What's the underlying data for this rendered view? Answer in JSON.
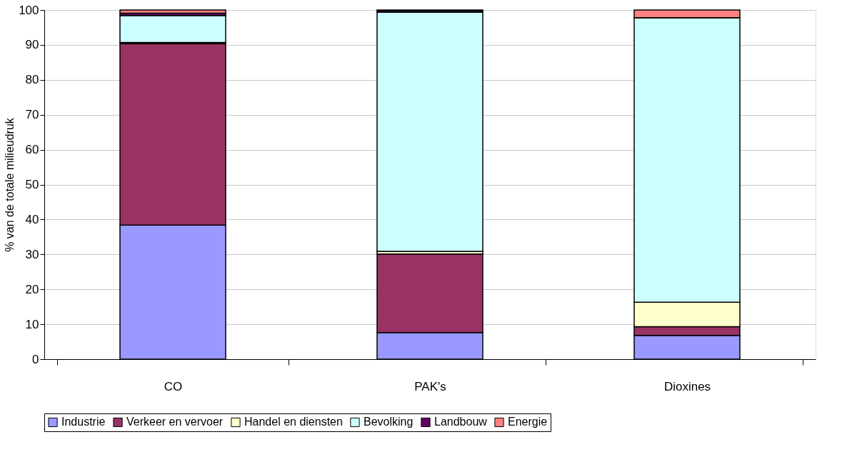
{
  "chart_data": {
    "type": "bar",
    "stacked": true,
    "ylabel": "% van de totale milieudruk",
    "categories": [
      "CO",
      "PAK's",
      "Dioxines"
    ],
    "series": [
      {
        "name": "Industrie",
        "color": "#9999ff",
        "values": [
          38.4,
          7.6,
          6.8
        ]
      },
      {
        "name": "Verkeer en vervoer",
        "color": "#993366",
        "values": [
          52.0,
          22.5,
          2.5
        ]
      },
      {
        "name": "Handel en diensten",
        "color": "#ffffcc",
        "values": [
          0.3,
          0.8,
          7.0
        ]
      },
      {
        "name": "Bevolking",
        "color": "#ccffff",
        "values": [
          7.7,
          68.5,
          81.5
        ]
      },
      {
        "name": "Landbouw",
        "color": "#660066",
        "values": [
          0.7,
          0.4,
          0.0
        ]
      },
      {
        "name": "Energie",
        "color": "#ff8080",
        "values": [
          0.9,
          0.2,
          2.2
        ]
      }
    ],
    "ylim": [
      0,
      100
    ],
    "yticks": [
      0,
      10,
      20,
      30,
      40,
      50,
      60,
      70,
      80,
      90,
      100
    ],
    "grid": "y",
    "legend": "bottom"
  }
}
